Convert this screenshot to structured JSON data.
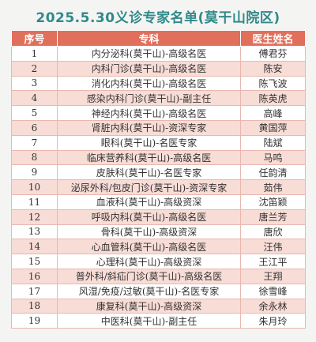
{
  "title": "2025.5.30义诊专家名单(莫干山院区)",
  "table": {
    "header": [
      "序号",
      "专科",
      "医生姓名"
    ],
    "rows": [
      [
        1,
        "内分泌科(莫干山)-高级名医",
        "傅君芬"
      ],
      [
        2,
        "内科门诊(莫干山)-高级名医",
        "陈安"
      ],
      [
        3,
        "消化内科(莫干山)-高级名医",
        "陈飞波"
      ],
      [
        4,
        "感染内科门诊(莫干山)-副主任",
        "陈英虎"
      ],
      [
        5,
        "神经内科(莫干山)-高级名医",
        "高峰"
      ],
      [
        6,
        "肾脏内科(莫干山)-资深专家",
        "黄国萍"
      ],
      [
        7,
        "眼科(莫干山)-名医专家",
        "陆斌"
      ],
      [
        8,
        "临床营养科(莫干山)-高级名医",
        "马鸣"
      ],
      [
        9,
        "皮肤科(莫干山)-名医专家",
        "任韵清"
      ],
      [
        10,
        "泌尿外科/包皮门诊(莫干山)-资深专家",
        "茹伟"
      ],
      [
        11,
        "血液科(莫干山)-高级资深",
        "沈笛颖"
      ],
      [
        12,
        "呼吸内科(莫干山)-高级名医",
        "唐兰芳"
      ],
      [
        13,
        "骨科(莫干山)-高级资深",
        "唐欣"
      ],
      [
        14,
        "心血管科(莫干山)-高级名医",
        "汪伟"
      ],
      [
        15,
        "心理科(莫干山)-高级资深",
        "王江平"
      ],
      [
        16,
        "普外科/斜疝门诊(莫干山)-高级名医",
        "王翔"
      ],
      [
        17,
        "风湿/免疫/过敏(莫干山)-名医专家",
        "徐雪峰"
      ],
      [
        18,
        "康复科(莫干山)-高级资深",
        "余永林"
      ],
      [
        19,
        "中医科(莫干山)-副主任",
        "朱月玲"
      ]
    ]
  }
}
